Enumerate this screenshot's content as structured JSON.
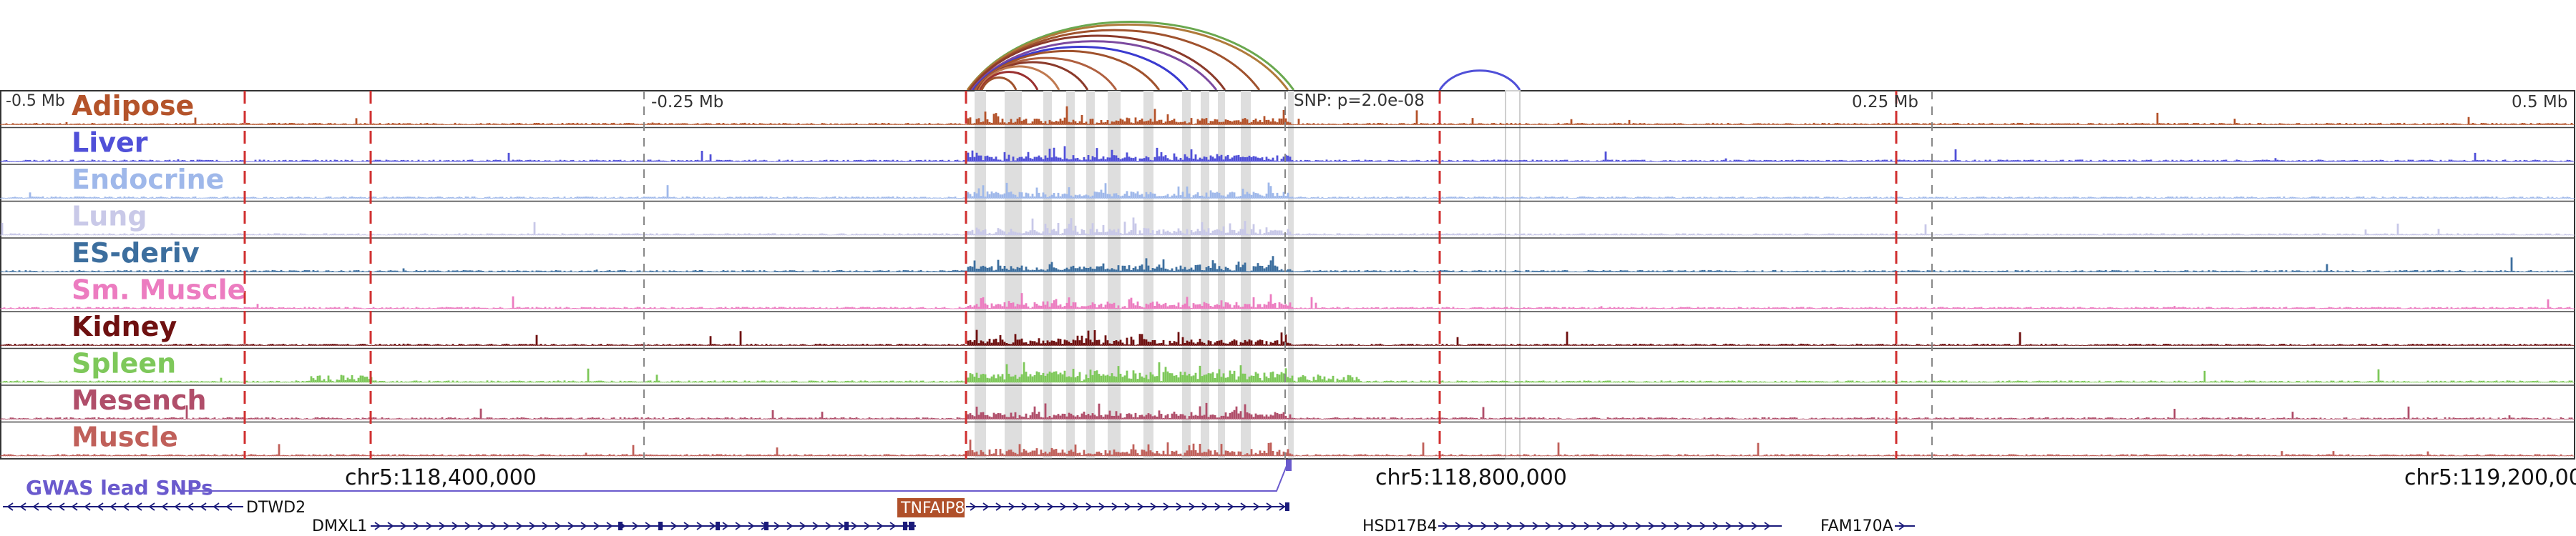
{
  "scale_labels": {
    "left_end": "-0.5 Mb",
    "left_mid": "-0.25 Mb",
    "right_mid": "0.25 Mb",
    "right_end": "0.5 Mb"
  },
  "snp_label": "SNP: p=2.0e-08",
  "tracks": [
    {
      "name": "Adipose",
      "color": "#b4532a",
      "seed": 11
    },
    {
      "name": "Liver",
      "color": "#5050d8",
      "seed": 23
    },
    {
      "name": "Endocrine",
      "color": "#9fb8ea",
      "seed": 37
    },
    {
      "name": "Lung",
      "color": "#c9c9e8",
      "seed": 41
    },
    {
      "name": "ES-deriv",
      "color": "#3c6e9e",
      "seed": 53
    },
    {
      "name": "Sm. Muscle",
      "color": "#ec7cc0",
      "seed": 67
    },
    {
      "name": "Kidney",
      "color": "#6e1010",
      "seed": 71
    },
    {
      "name": "Spleen",
      "color": "#7ec85a",
      "seed": 83
    },
    {
      "name": "Mesench",
      "color": "#b04e6a",
      "seed": 97
    },
    {
      "name": "Muscle",
      "color": "#c0605a",
      "seed": 101
    }
  ],
  "gwas": {
    "label": "GWAS lead SNPs",
    "color": "#6a5acd"
  },
  "coordinates": [
    "chr5:118,400,000",
    "chr5:118,800,000",
    "chr5:119,200,000"
  ],
  "genes": [
    {
      "name": "DTWD2",
      "strand": "-"
    },
    {
      "name": "DMXL1",
      "strand": "+"
    },
    {
      "name": "TNFAIP8",
      "strand": "+",
      "highlight": true
    },
    {
      "name": "HSD17B4",
      "strand": "+"
    },
    {
      "name": "FAM170A",
      "strand": "+"
    }
  ],
  "colors": {
    "gene_blue": "#1a1a7a",
    "highlight_gene": "#b0502a",
    "red_marker": "#d03030",
    "grey_marker": "#888888"
  }
}
